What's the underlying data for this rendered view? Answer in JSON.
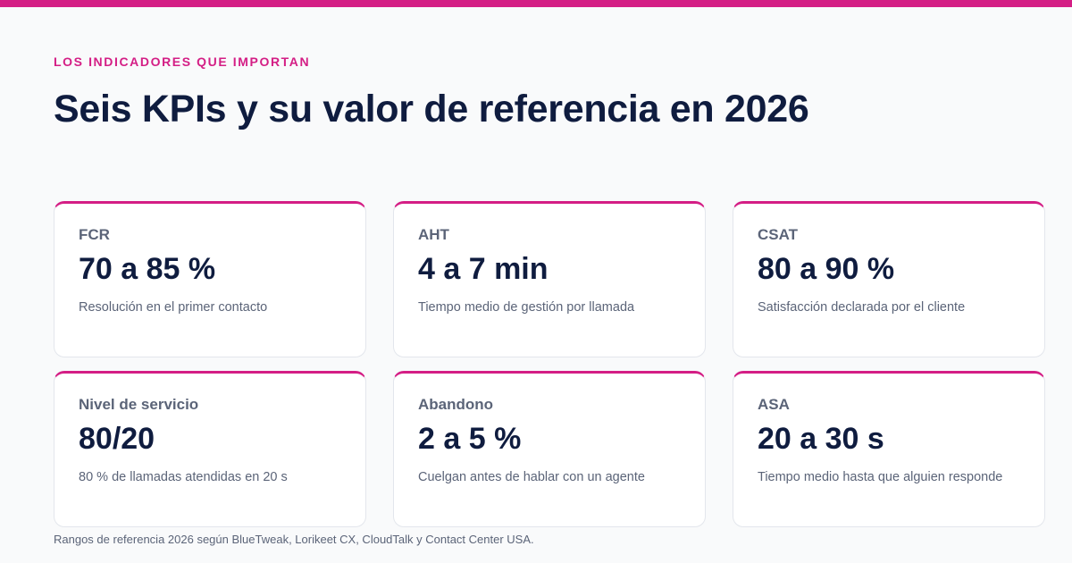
{
  "header": {
    "eyebrow": "LOS INDICADORES QUE IMPORTAN",
    "title": "Seis KPIs y su valor de referencia en 2026"
  },
  "kpis": [
    {
      "label": "FCR",
      "value": "70 a 85 %",
      "description": "Resolución en el primer contacto"
    },
    {
      "label": "AHT",
      "value": "4 a 7 min",
      "description": "Tiempo medio de gestión por llamada"
    },
    {
      "label": "CSAT",
      "value": "80 a 90 %",
      "description": "Satisfacción declarada por el cliente"
    },
    {
      "label": "Nivel de servicio",
      "value": "80/20",
      "description": "80 % de llamadas atendidas en 20 s"
    },
    {
      "label": "Abandono",
      "value": "2 a 5 %",
      "description": "Cuelgan antes de hablar con un agente"
    },
    {
      "label": "ASA",
      "value": "20 a 30 s",
      "description": "Tiempo medio hasta que alguien responde"
    }
  ],
  "footnote": "Rangos de referencia 2026 según BlueTweak, Lorikeet CX, CloudTalk y Contact Center USA.",
  "colors": {
    "accent": "#d41e85",
    "heading": "#0f1c3f",
    "muted": "#5b6478",
    "background": "#f9fafb"
  }
}
